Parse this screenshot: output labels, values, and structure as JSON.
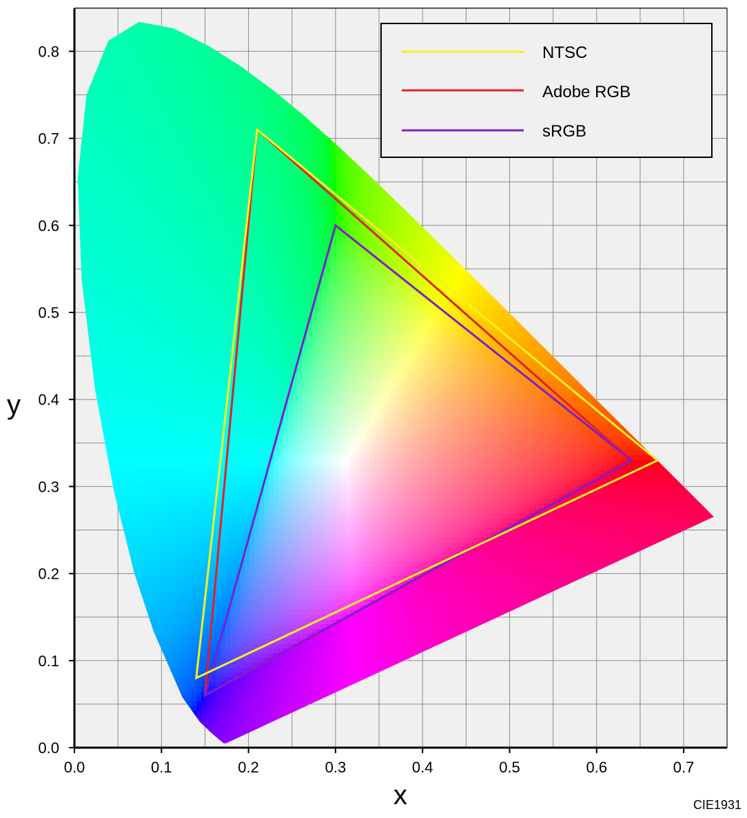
{
  "chart_data": {
    "type": "scatter",
    "subtype": "chromaticity-diagram",
    "xlabel": "x",
    "ylabel": "y",
    "xlim": [
      0.0,
      0.75
    ],
    "ylim": [
      0.0,
      0.85
    ],
    "x_ticks": [
      "0.0",
      "0.1",
      "0.2",
      "0.3",
      "0.4",
      "0.5",
      "0.6",
      "0.7"
    ],
    "y_ticks": [
      "0.0",
      "0.1",
      "0.2",
      "0.3",
      "0.4",
      "0.5",
      "0.6",
      "0.7",
      "0.8"
    ],
    "grid": true,
    "grid_step": 0.05,
    "legend_position": "top-right",
    "annotation": "CIE1931",
    "spectral_locus": {
      "x": [
        0.1741,
        0.1714,
        0.1644,
        0.1566,
        0.144,
        0.1241,
        0.0913,
        0.0687,
        0.0454,
        0.0235,
        0.0082,
        0.0039,
        0.0139,
        0.0389,
        0.0743,
        0.1142,
        0.1547,
        0.1929,
        0.2296,
        0.2658,
        0.3016,
        0.3373,
        0.3731,
        0.4087,
        0.4441,
        0.4788,
        0.5125,
        0.5448,
        0.5752,
        0.6029,
        0.627,
        0.6482,
        0.6658,
        0.6801,
        0.6915,
        0.7006,
        0.7079,
        0.714,
        0.719,
        0.723,
        0.726,
        0.7347
      ],
      "y": [
        0.005,
        0.0051,
        0.0109,
        0.0177,
        0.0297,
        0.0578,
        0.1327,
        0.2007,
        0.295,
        0.4127,
        0.5384,
        0.6548,
        0.7502,
        0.812,
        0.8338,
        0.8262,
        0.8059,
        0.7816,
        0.7543,
        0.7243,
        0.6923,
        0.6589,
        0.6245,
        0.5896,
        0.5547,
        0.5202,
        0.4866,
        0.4544,
        0.4242,
        0.3965,
        0.3725,
        0.3514,
        0.334,
        0.3197,
        0.3083,
        0.2993,
        0.292,
        0.2859,
        0.2809,
        0.277,
        0.274,
        0.2653
      ]
    },
    "white_point": [
      0.3127,
      0.329
    ],
    "series": [
      {
        "name": "NTSC",
        "color": "#f6f01f",
        "x": [
          0.67,
          0.21,
          0.14
        ],
        "y": [
          0.33,
          0.71,
          0.08
        ]
      },
      {
        "name": "Adobe RGB",
        "color": "#e0202c",
        "x": [
          0.64,
          0.21,
          0.15
        ],
        "y": [
          0.33,
          0.71,
          0.06
        ]
      },
      {
        "name": "sRGB",
        "color": "#7d1fd0",
        "x": [
          0.64,
          0.3,
          0.15
        ],
        "y": [
          0.33,
          0.6,
          0.06
        ]
      }
    ]
  },
  "colors": {
    "plot_background": "#f0f0f0",
    "grid": "#8a8a8a",
    "axis": "#000000",
    "legend_background": "#f0f0f0"
  }
}
